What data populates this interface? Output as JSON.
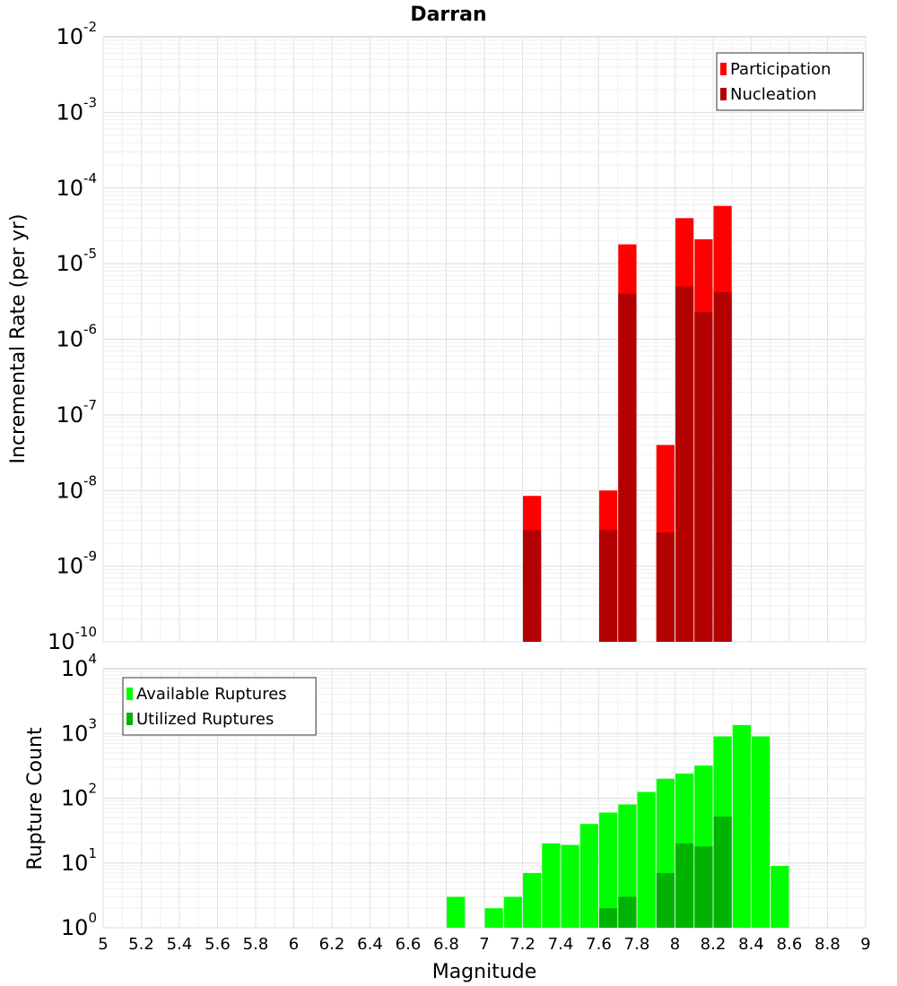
{
  "title": "Darran",
  "chart_data": [
    {
      "type": "bar",
      "title": "Darran",
      "xlabel": "Magnitude",
      "ylabel": "Incremental Rate (per yr)",
      "yscale": "log",
      "xlim": [
        5,
        9
      ],
      "ylim_exponents": [
        -10,
        -2
      ],
      "grid": true,
      "legend_position": "top-right",
      "bar_width": 0.095,
      "series": [
        {
          "name": "Participation",
          "color": "#ff0000",
          "x": [
            7.25,
            7.65,
            7.75,
            7.95,
            8.05,
            8.15,
            8.25
          ],
          "values": [
            8.5e-09,
            1e-08,
            1.8e-05,
            4e-08,
            4e-05,
            2.1e-05,
            5.8e-05
          ]
        },
        {
          "name": "Nucleation",
          "color": "#b30000",
          "x": [
            7.25,
            7.65,
            7.75,
            7.95,
            8.05,
            8.15,
            8.25
          ],
          "values": [
            3e-09,
            3e-09,
            4e-06,
            2.8e-09,
            5e-06,
            2.3e-06,
            4.2e-06
          ]
        }
      ]
    },
    {
      "type": "bar",
      "xlabel": "Magnitude",
      "ylabel": "Rupture Count",
      "yscale": "log",
      "xlim": [
        5,
        9
      ],
      "ylim_exponents": [
        0,
        4
      ],
      "grid": true,
      "legend_position": "top-left",
      "bar_width": 0.095,
      "series": [
        {
          "name": "Available Ruptures",
          "color": "#00ff00",
          "x": [
            6.85,
            7.05,
            7.15,
            7.25,
            7.35,
            7.45,
            7.55,
            7.65,
            7.75,
            7.85,
            7.95,
            8.05,
            8.15,
            8.25,
            8.35,
            8.45,
            8.55
          ],
          "values": [
            3,
            2,
            3,
            7,
            20,
            19,
            40,
            60,
            80,
            125,
            200,
            240,
            320,
            900,
            1350,
            900,
            9
          ]
        },
        {
          "name": "Utilized Ruptures",
          "color": "#00b300",
          "x": [
            7.25,
            7.65,
            7.75,
            7.95,
            8.05,
            8.15,
            8.25,
            8.35,
            8.55
          ],
          "values": [
            1,
            2,
            3,
            7,
            20,
            18,
            52,
            1,
            1
          ]
        }
      ]
    }
  ],
  "x_ticks": [
    "5",
    "5.2",
    "5.4",
    "5.6",
    "5.8",
    "6",
    "6.2",
    "6.4",
    "6.6",
    "6.8",
    "7",
    "7.2",
    "7.4",
    "7.6",
    "7.8",
    "8",
    "8.2",
    "8.4",
    "8.6",
    "8.8",
    "9"
  ],
  "top_y_ticks": [
    {
      "base": "10",
      "exp": "-10"
    },
    {
      "base": "10",
      "exp": "-9"
    },
    {
      "base": "10",
      "exp": "-8"
    },
    {
      "base": "10",
      "exp": "-7"
    },
    {
      "base": "10",
      "exp": "-6"
    },
    {
      "base": "10",
      "exp": "-5"
    },
    {
      "base": "10",
      "exp": "-4"
    },
    {
      "base": "10",
      "exp": "-3"
    },
    {
      "base": "10",
      "exp": "-2"
    }
  ],
  "bottom_y_ticks": [
    {
      "base": "10",
      "exp": "0"
    },
    {
      "base": "10",
      "exp": "1"
    },
    {
      "base": "10",
      "exp": "2"
    },
    {
      "base": "10",
      "exp": "3"
    },
    {
      "base": "10",
      "exp": "4"
    }
  ]
}
